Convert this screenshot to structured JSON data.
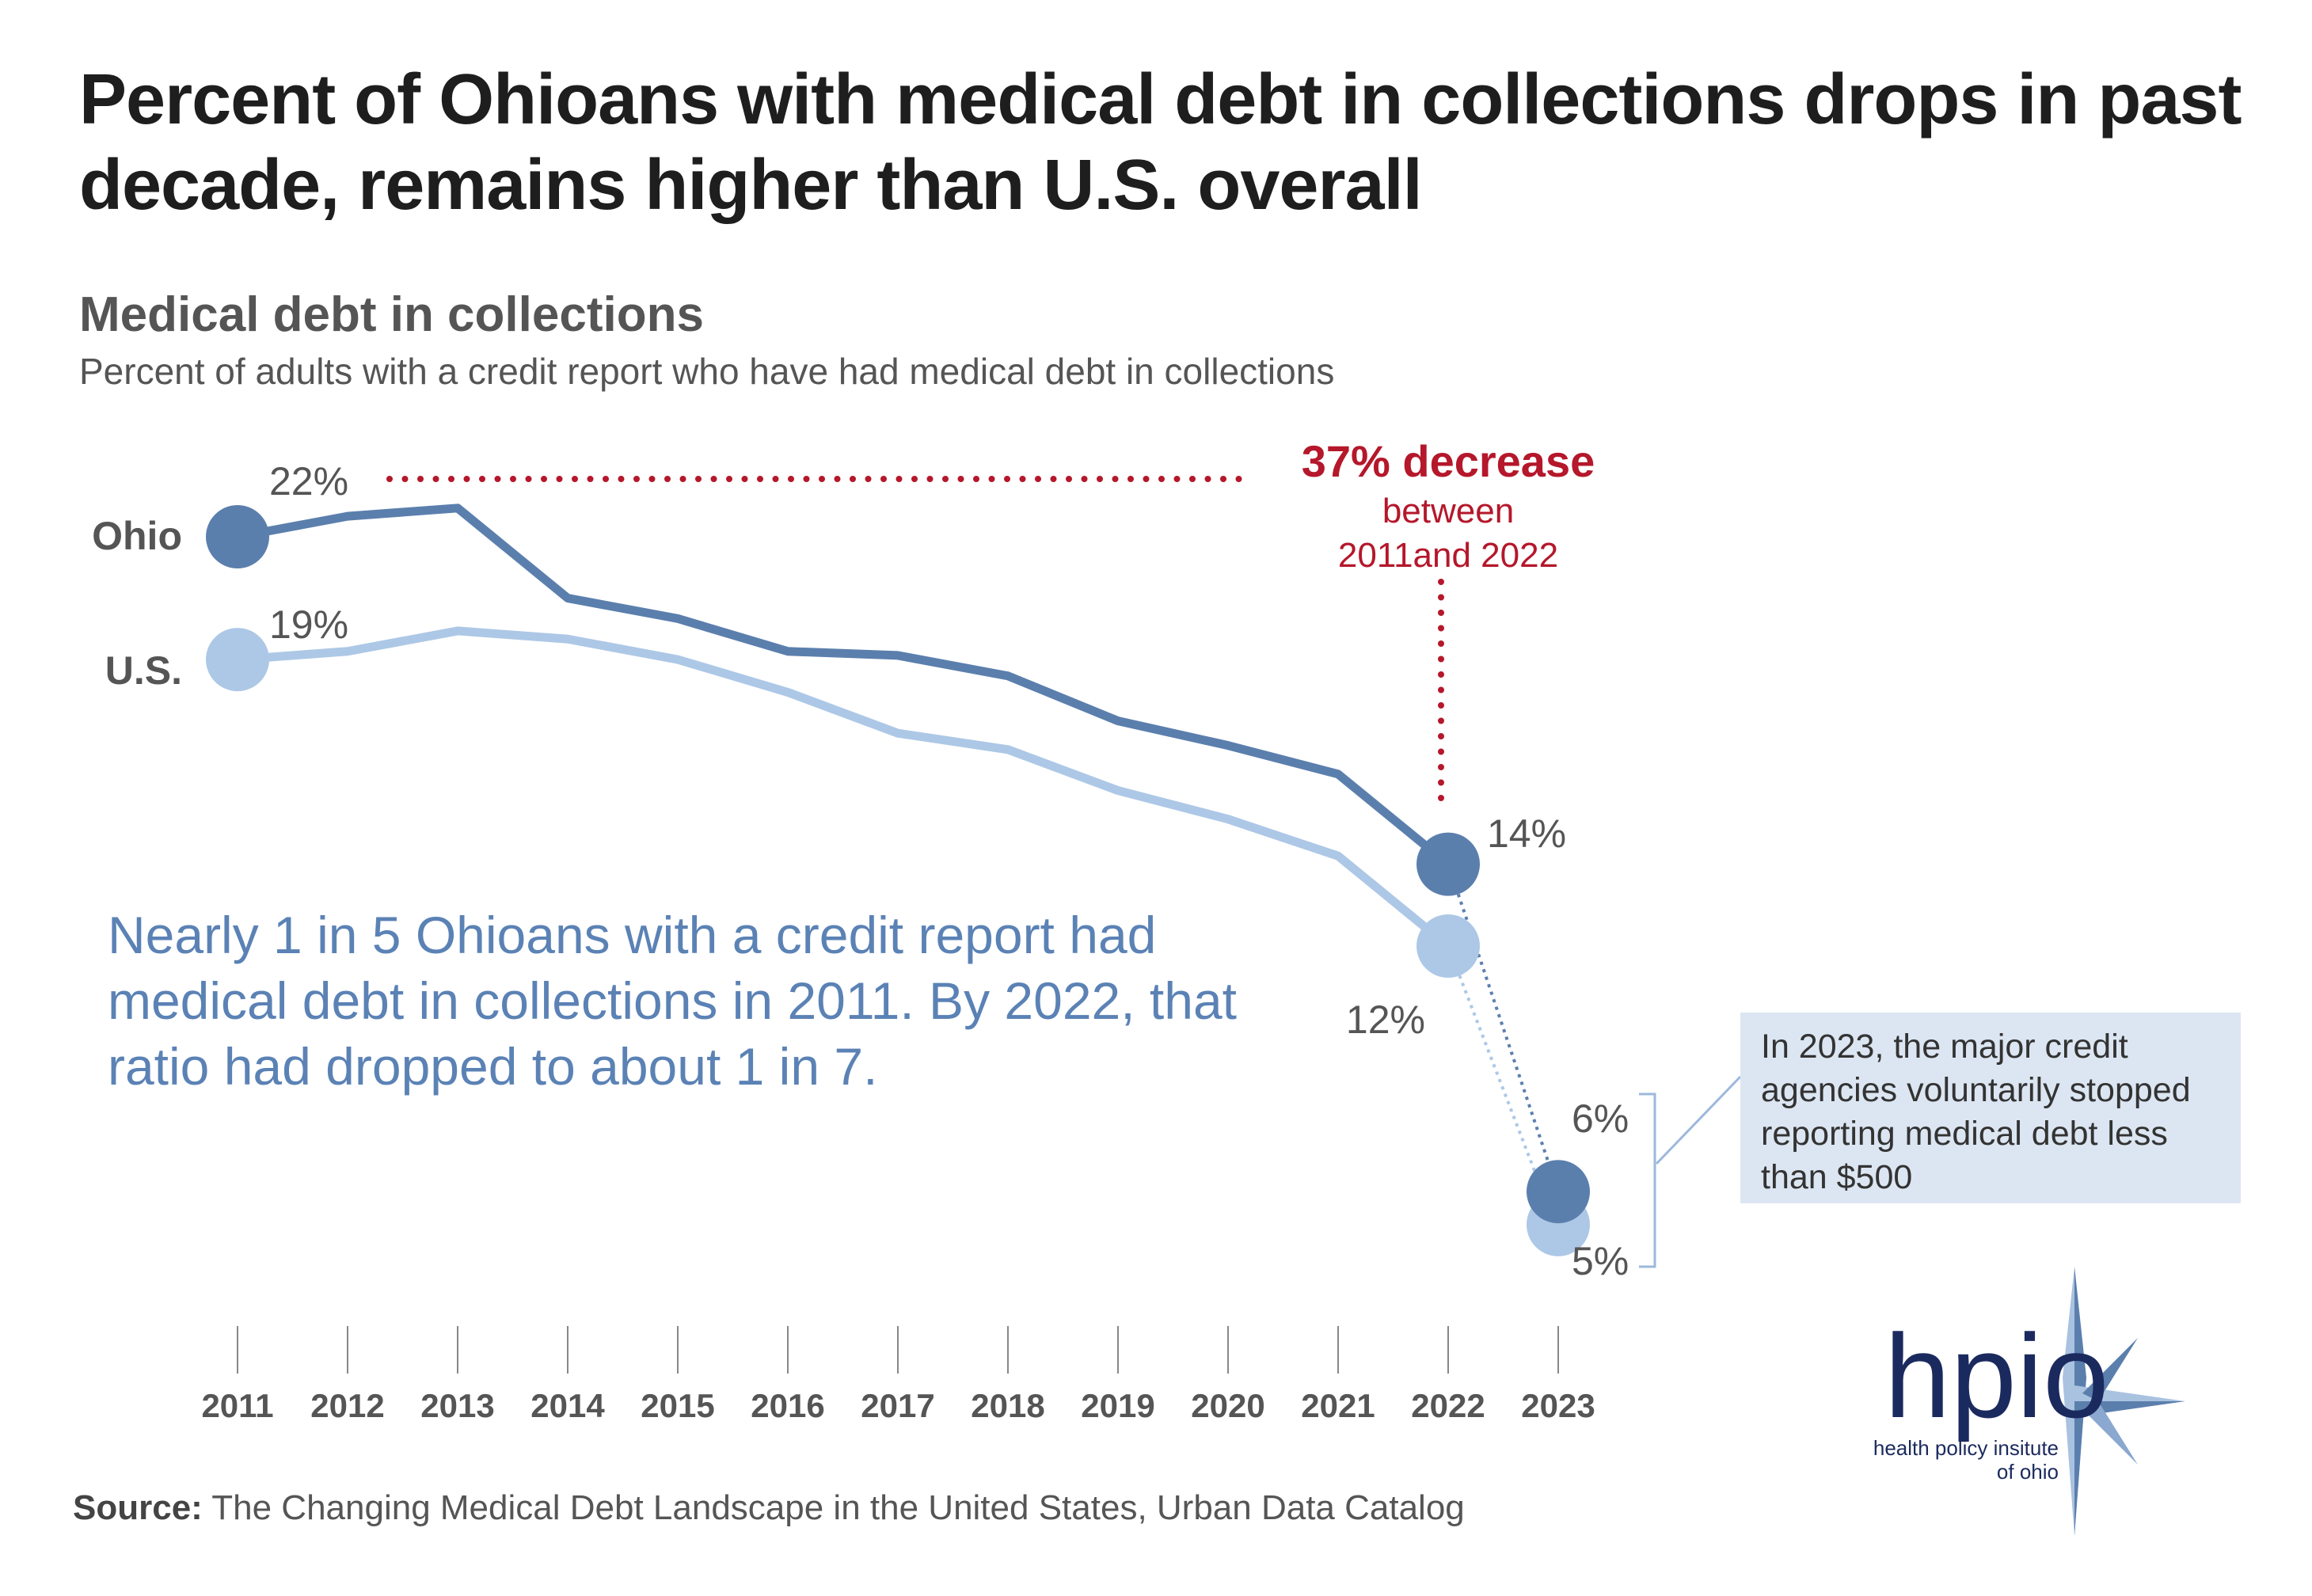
{
  "title": "Percent of Ohioans with medical debt in collections drops in past decade, remains higher than U.S. overall",
  "chart_data": {
    "type": "line",
    "title": "Medical debt in collections",
    "subtitle": "Percent of adults with a credit report who have had medical debt in collections",
    "x": [
      "2011",
      "2012",
      "2013",
      "2014",
      "2015",
      "2016",
      "2017",
      "2018",
      "2019",
      "2020",
      "2021",
      "2022",
      "2023"
    ],
    "series": [
      {
        "name": "Ohio",
        "color": "#5b7fad",
        "values": [
          22,
          22.5,
          22.7,
          20.5,
          20.0,
          19.2,
          19.1,
          18.6,
          17.5,
          16.9,
          16.2,
          14,
          6
        ]
      },
      {
        "name": "U.S.",
        "color": "#adc8e6",
        "values": [
          19,
          19.2,
          19.7,
          19.5,
          19.0,
          18.2,
          17.2,
          16.8,
          15.8,
          15.1,
          14.2,
          12,
          5
        ]
      }
    ],
    "data_labels": {
      "ohio_2011": "22%",
      "us_2011": "19%",
      "ohio_2022": "14%",
      "us_2022": "12%",
      "ohio_2023": "6%",
      "us_2023": "5%"
    },
    "ylim": [
      4,
      24
    ],
    "grid": false,
    "annotation": {
      "headline": "37% decrease",
      "line1": "between",
      "line2": "2011and 2022",
      "color": "#b5172b"
    }
  },
  "callout": "Nearly 1 in 5 Ohioans with a credit report had medical debt in collections in 2011. By 2022, that ratio had dropped to about 1 in 7.",
  "note": "In 2023, the major credit agencies voluntarily stopped reporting medical debt less than $500",
  "source": {
    "label": "Source:",
    "text": " The Changing Medical Debt Landscape in the United States, Urban Data Catalog"
  },
  "logo": {
    "wordmark": "hpio",
    "line1": "health policy insitute",
    "line2": "of ohio"
  }
}
